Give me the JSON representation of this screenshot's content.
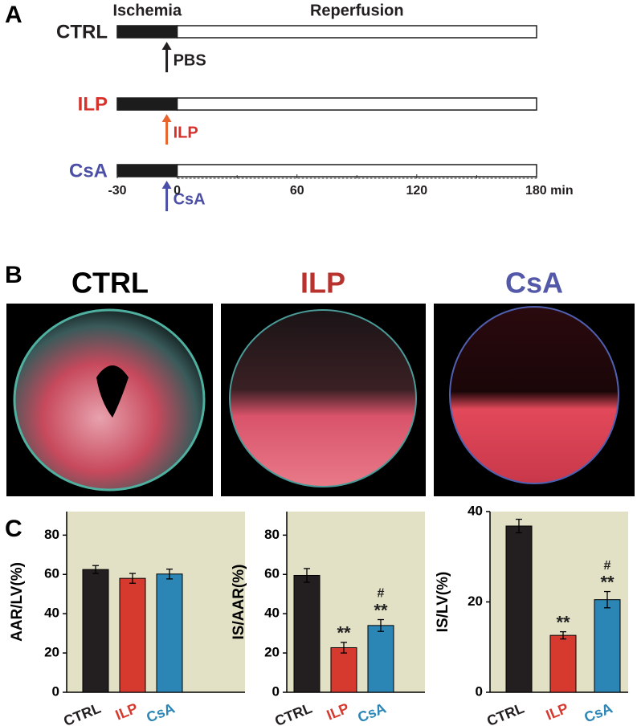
{
  "panels": {
    "a": "A",
    "b": "B",
    "c": "C"
  },
  "timeline": {
    "phases": [
      {
        "label": "Ischemia",
        "start": -30,
        "end": 0
      },
      {
        "label": "Reperfusion",
        "start": 0,
        "end": 180
      }
    ],
    "xlim": [
      -30,
      180
    ],
    "xticks": [
      -30,
      0,
      60,
      120,
      {
        "value": 180,
        "label": "180 min"
      }
    ],
    "rows": [
      {
        "label": "CTRL",
        "color": "#231f20",
        "treatment": "PBS",
        "arrow_color": "#231f20"
      },
      {
        "label": "ILP",
        "color": "#d7312b",
        "treatment": "ILP",
        "arrow_color": "#e8642c"
      },
      {
        "label": "CsA",
        "color": "#4b4fa6",
        "treatment": "CsA",
        "arrow_color": "#4b4fa6"
      }
    ]
  },
  "images": [
    {
      "title": "CTRL",
      "color": "#000000"
    },
    {
      "title": "ILP",
      "color": "#b8332e"
    },
    {
      "title": "CsA",
      "color": "#5458a8"
    }
  ],
  "chart_data": [
    {
      "type": "bar",
      "ylabel": "AAR/LV(%)",
      "categories": [
        "CTRL",
        "ILP",
        "CsA"
      ],
      "colors": [
        "#231f20",
        "#d63a2f",
        "#2b86b5"
      ],
      "values": [
        62.5,
        58,
        60.2
      ],
      "errors": [
        2,
        2.5,
        2.5
      ],
      "ylim": [
        0,
        92
      ],
      "yticks": [
        0,
        20,
        40,
        60,
        80
      ],
      "background": "#e3e1c5"
    },
    {
      "type": "bar",
      "ylabel": "IS/AAR(%)",
      "categories": [
        "CTRL",
        "ILP",
        "CsA"
      ],
      "colors": [
        "#231f20",
        "#d63a2f",
        "#2b86b5"
      ],
      "values": [
        59.5,
        22.7,
        34
      ],
      "errors": [
        3.5,
        2.7,
        3
      ],
      "ylim": [
        0,
        92
      ],
      "yticks": [
        0,
        20,
        40,
        60,
        80
      ],
      "background": "#e3e1c5",
      "annotations": [
        {
          "category": "ILP",
          "labels": [
            "**"
          ]
        },
        {
          "category": "CsA",
          "labels": [
            "**",
            "#"
          ]
        }
      ]
    },
    {
      "type": "bar",
      "ylabel": "IS/LV(%)",
      "categories": [
        "CTRL",
        "ILP",
        "CsA"
      ],
      "colors": [
        "#231f20",
        "#d63a2f",
        "#2b86b5"
      ],
      "values": [
        36.8,
        12.6,
        20.5
      ],
      "errors": [
        1.5,
        0.8,
        1.8
      ],
      "ylim": [
        0,
        40
      ],
      "yticks": [
        0,
        20,
        40
      ],
      "background": "#e3e1c5",
      "annotations": [
        {
          "category": "ILP",
          "labels": [
            "**"
          ]
        },
        {
          "category": "CsA",
          "labels": [
            "**",
            "#"
          ]
        }
      ]
    }
  ]
}
